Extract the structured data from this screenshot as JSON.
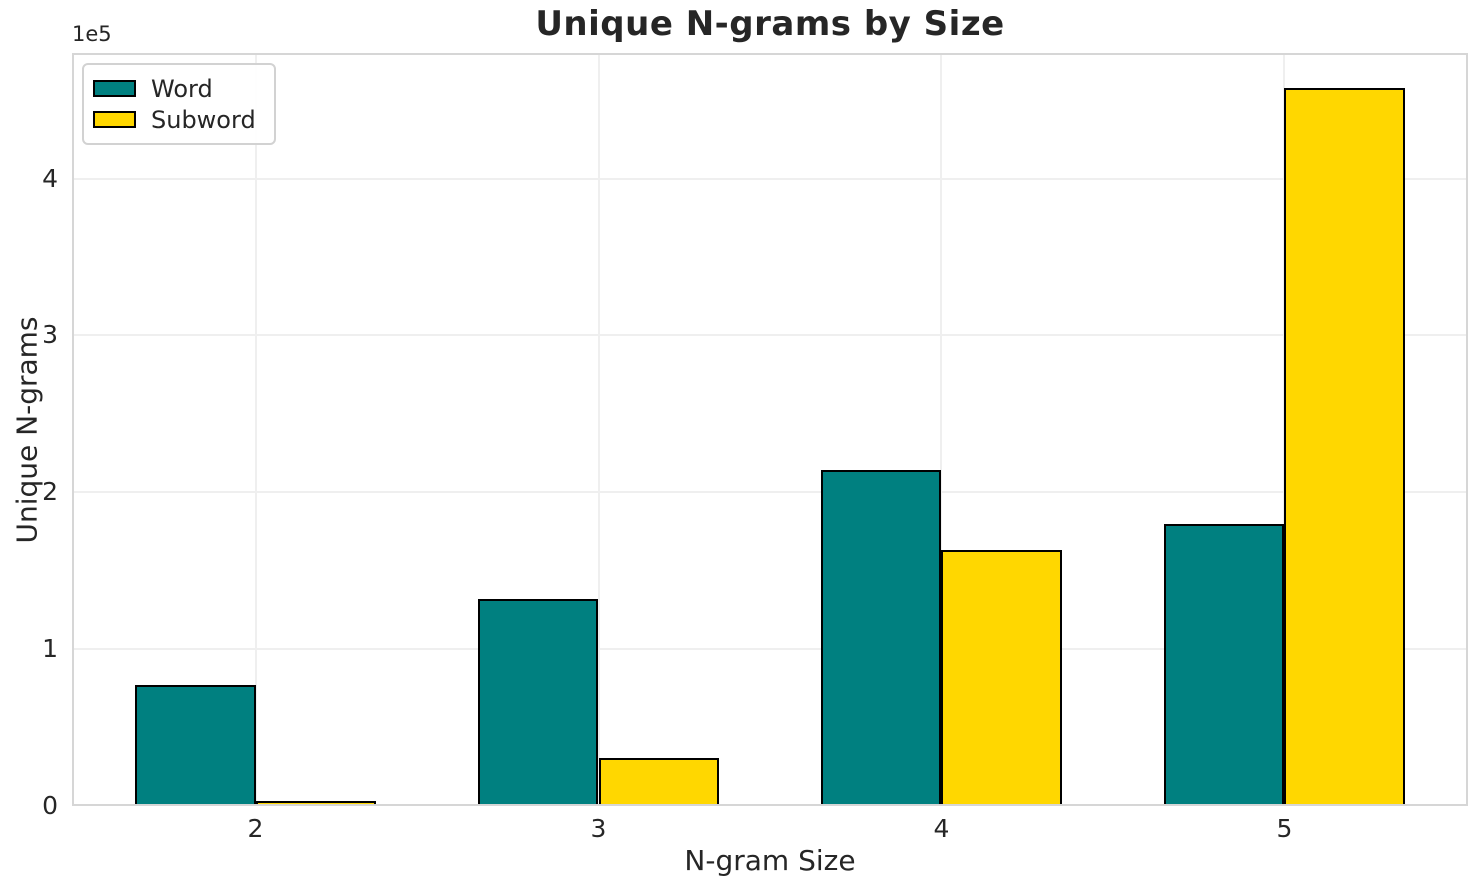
{
  "chart_data": {
    "type": "bar",
    "title": "Unique N-grams by Size",
    "xlabel": "N-gram Size",
    "ylabel": "Unique N-grams",
    "y_offset_text": "1e5",
    "categories": [
      "2",
      "3",
      "4",
      "5"
    ],
    "series": [
      {
        "name": "Word",
        "color": "#008080",
        "values": [
          77000,
          132000,
          214000,
          180000
        ]
      },
      {
        "name": "Subword",
        "color": "#FFD700",
        "values": [
          3200,
          30600,
          163000,
          458000
        ]
      }
    ],
    "bar_edge_color": "#000000",
    "bar_width": 0.35,
    "ylim": [
      0,
      480000
    ],
    "xlim": [
      -0.535,
      3.535
    ],
    "yticks": [
      0,
      100000,
      200000,
      300000,
      400000
    ],
    "ytick_labels": [
      "0",
      "1",
      "2",
      "3",
      "4"
    ],
    "grid": true,
    "legend": {
      "position": "upper left",
      "labels": [
        "Word",
        "Subword"
      ]
    }
  }
}
